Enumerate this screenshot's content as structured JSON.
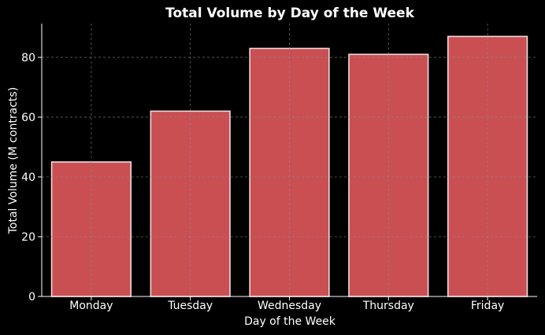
{
  "chart_data": {
    "type": "bar",
    "title": "Total Volume by Day of the Week",
    "xlabel": "Day of the Week",
    "ylabel": "Total Volume (M contracts)",
    "categories": [
      "Monday",
      "Tuesday",
      "Wednesday",
      "Thursday",
      "Friday"
    ],
    "values": [
      45,
      62,
      83,
      81,
      87
    ],
    "ylim": [
      0,
      91.3
    ],
    "yticks": [
      0,
      20,
      40,
      60,
      80
    ],
    "grid": true,
    "colors": {
      "bar_fill": "#c94f53",
      "bar_edge": "#f2dada",
      "background": "#000000",
      "text": "#ffffff",
      "grid": "#8a8a8a"
    }
  }
}
